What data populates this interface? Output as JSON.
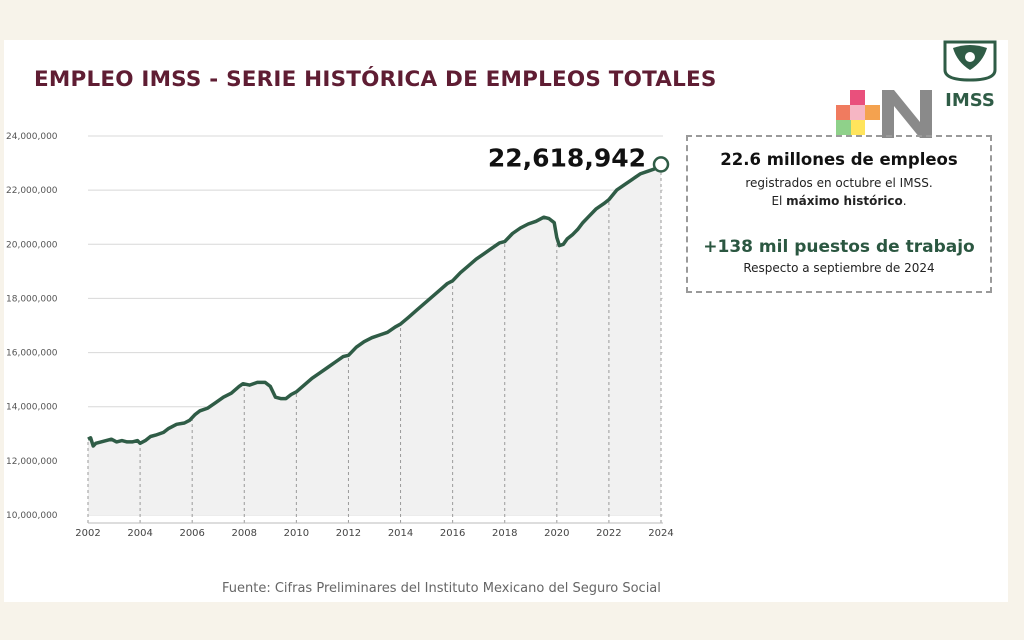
{
  "title": "EMPLEO IMSS - SERIE HISTÓRICA DE EMPLEOS TOTALES",
  "logo": {
    "text": "IMSS"
  },
  "chart_data": {
    "type": "area",
    "xlabel": "",
    "ylabel": "",
    "ylim": [
      10000000,
      24000000
    ],
    "xlim": [
      2002,
      2024
    ],
    "yticks": [
      "10,000,000",
      "12,000,000",
      "14,000,000",
      "16,000,000",
      "18,000,000",
      "20,000,000",
      "22,000,000",
      "24,000,000"
    ],
    "yticks_values": [
      10000000,
      12000000,
      14000000,
      16000000,
      18000000,
      20000000,
      22000000,
      24000000
    ],
    "xticks": [
      "2002",
      "2004",
      "2006",
      "2008",
      "2010",
      "2012",
      "2014",
      "2016",
      "2018",
      "2020",
      "2022",
      "2024"
    ],
    "xticks_values": [
      2002,
      2004,
      2006,
      2008,
      2010,
      2012,
      2014,
      2016,
      2018,
      2020,
      2022,
      2024
    ],
    "grid": "y",
    "colors": {
      "line": "#2f5c46",
      "fill": "#f1f1f1",
      "peak_marker": "#ffffff"
    },
    "peak_label": "22,618,942",
    "series": [
      {
        "x": [
          2002.0,
          2002.1,
          2002.2,
          2002.3,
          2002.5,
          2002.7,
          2002.9,
          2003.1,
          2003.3,
          2003.5,
          2003.7,
          2003.9,
          2004.0,
          2004.2,
          2004.4,
          2004.6,
          2004.9,
          2005.1,
          2005.4,
          2005.7,
          2005.9,
          2006.1,
          2006.3,
          2006.6,
          2006.9,
          2007.2,
          2007.5,
          2007.8,
          2007.95,
          2008.2,
          2008.5,
          2008.8,
          2009.0,
          2009.2,
          2009.4,
          2009.6,
          2009.8,
          2010.0,
          2010.3,
          2010.6,
          2010.9,
          2011.2,
          2011.5,
          2011.8,
          2012.0,
          2012.3,
          2012.6,
          2012.9,
          2013.2,
          2013.5,
          2013.8,
          2014.0,
          2014.3,
          2014.6,
          2014.9,
          2015.2,
          2015.5,
          2015.8,
          2016.0,
          2016.3,
          2016.6,
          2016.9,
          2017.2,
          2017.5,
          2017.8,
          2018.0,
          2018.3,
          2018.6,
          2018.9,
          2019.2,
          2019.5,
          2019.7,
          2019.9,
          2020.0,
          2020.1,
          2020.25,
          2020.4,
          2020.6,
          2020.8,
          2021.0,
          2021.2,
          2021.5,
          2021.8,
          2022.0,
          2022.3,
          2022.6,
          2022.9,
          2023.2,
          2023.5,
          2023.8,
          2024.0
        ],
        "values": [
          12800000,
          12850000,
          12550000,
          12650000,
          12700000,
          12750000,
          12800000,
          12700000,
          12750000,
          12700000,
          12700000,
          12750000,
          12650000,
          12750000,
          12900000,
          12950000,
          13050000,
          13200000,
          13350000,
          13400000,
          13500000,
          13700000,
          13850000,
          13950000,
          14150000,
          14350000,
          14500000,
          14750000,
          14850000,
          14800000,
          14900000,
          14900000,
          14750000,
          14350000,
          14300000,
          14300000,
          14450000,
          14550000,
          14800000,
          15050000,
          15250000,
          15450000,
          15650000,
          15850000,
          15900000,
          16200000,
          16400000,
          16550000,
          16650000,
          16750000,
          16950000,
          17050000,
          17300000,
          17550000,
          17800000,
          18050000,
          18300000,
          18550000,
          18650000,
          18950000,
          19200000,
          19450000,
          19650000,
          19850000,
          20050000,
          20100000,
          20400000,
          20600000,
          20750000,
          20850000,
          21000000,
          20950000,
          20800000,
          20250000,
          19950000,
          20000000,
          20200000,
          20350000,
          20550000,
          20800000,
          21000000,
          21300000,
          21500000,
          21650000,
          22000000,
          22200000,
          22400000,
          22600000,
          22700000,
          22800000,
          22950000
        ]
      }
    ]
  },
  "info": {
    "headline": "22.6 millones de empleos",
    "line2": "registrados en octubre el IMSS.",
    "line3_pre": "El ",
    "line3_bold": "máximo histórico",
    "line3_post": ".",
    "headline2": "+138 mil puestos de trabajo",
    "line5": "Respecto a septiembre de 2024"
  },
  "source": "Fuente: Cifras Preliminares del Instituto Mexicano del Seguro Social"
}
